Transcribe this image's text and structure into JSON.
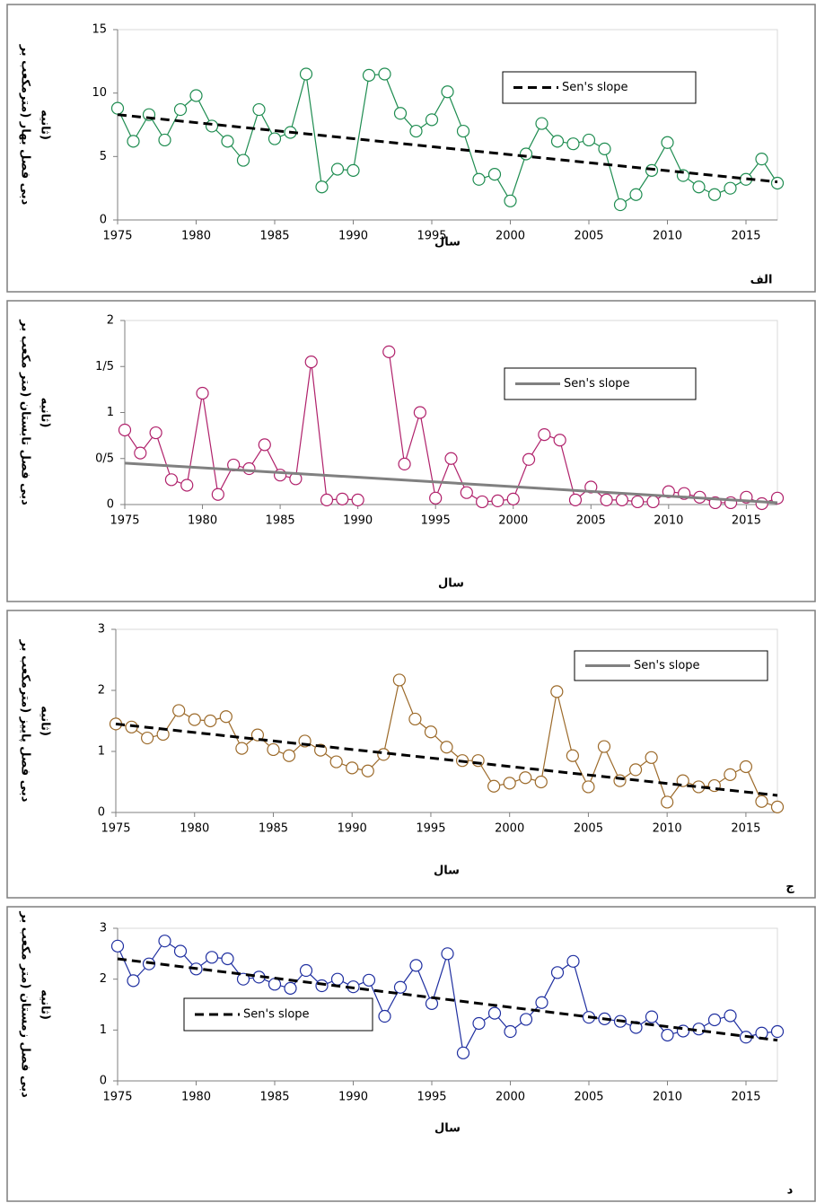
{
  "chart_data": [
    {
      "type": "line",
      "ylabel": [
        "دبی فصل بهار (مترمکعب بر",
        "ثانیه)"
      ],
      "xlabel": "سال",
      "panel_label": "الف",
      "x": [
        1975,
        1976,
        1977,
        1978,
        1979,
        1980,
        1981,
        1982,
        1983,
        1984,
        1985,
        1986,
        1987,
        1988,
        1989,
        1990,
        1991,
        1992,
        1993,
        1994,
        1995,
        1996,
        1997,
        1998,
        1999,
        2000,
        2001,
        2002,
        2003,
        2004,
        2005,
        2006,
        2007,
        2008,
        2009,
        2010,
        2011,
        2012,
        2013,
        2014,
        2015,
        2016,
        2017
      ],
      "xlim": [
        1975,
        2017
      ],
      "xticks": [
        1975,
        1980,
        1985,
        1990,
        1995,
        2000,
        2005,
        2010,
        2015
      ],
      "ylim": [
        0,
        15
      ],
      "yticks": [
        0,
        5,
        10,
        15
      ],
      "legend": "upper right",
      "series": [
        {
          "color": "#1e8c50",
          "values": [
            8.8,
            6.2,
            8.3,
            6.3,
            8.7,
            9.8,
            7.4,
            6.2,
            4.7,
            8.7,
            6.4,
            6.9,
            11.5,
            2.6,
            4.0,
            3.9,
            11.4,
            11.5,
            8.4,
            7.0,
            7.9,
            10.1,
            7.0,
            3.2,
            3.6,
            1.5,
            5.2,
            7.6,
            6.2,
            6.0,
            6.3,
            5.6,
            1.2,
            2.0,
            3.9,
            6.1,
            3.5,
            2.6,
            2.0,
            2.5,
            3.2,
            4.8,
            2.9
          ]
        },
        {
          "name": "Sen's slope",
          "color": "#000000",
          "dashed": true,
          "x": [
            1975,
            2017
          ],
          "values": [
            8.3,
            3.0
          ]
        }
      ]
    },
    {
      "type": "line",
      "ylabel": [
        "دبی فصل تابستان (متر مکعب بر",
        "ثانیه)"
      ],
      "xlabel": "سال",
      "x": [
        1975,
        1976,
        1977,
        1978,
        1979,
        1980,
        1981,
        1982,
        1983,
        1984,
        1985,
        1986,
        1987,
        1988,
        1989,
        1990,
        1991,
        1992,
        1993,
        1994,
        1995,
        1996,
        1997,
        1998,
        1999,
        2000,
        2001,
        2002,
        2003,
        2004,
        2005,
        2006,
        2007,
        2008,
        2009,
        2010,
        2011,
        2012,
        2013,
        2014,
        2015,
        2016,
        2017
      ],
      "xlim": [
        1975,
        2017
      ],
      "xticks": [
        1975,
        1980,
        1985,
        1990,
        1995,
        2000,
        2005,
        2010,
        2015
      ],
      "ylim": [
        0,
        2
      ],
      "yticks": [
        0,
        {
          "value": 0.5,
          "label": "0/5"
        },
        1,
        {
          "value": 1.5,
          "label": "1/5"
        },
        2
      ],
      "legend": "upper right",
      "series": [
        {
          "color": "#b0216b",
          "values": [
            0.81,
            0.56,
            0.78,
            0.27,
            0.21,
            1.21,
            0.11,
            0.43,
            0.39,
            0.65,
            0.32,
            0.28,
            1.55,
            0.05,
            0.06,
            0.05,
            null,
            1.66,
            0.44,
            1.0,
            0.07,
            0.5,
            0.13,
            0.03,
            0.04,
            0.06,
            0.49,
            0.76,
            0.7,
            0.05,
            0.19,
            0.05,
            0.05,
            0.03,
            0.03,
            0.14,
            0.12,
            0.08,
            0.02,
            0.02,
            0.08,
            0.01,
            0.07
          ]
        },
        {
          "name": "Sen's slope",
          "color": "#808080",
          "dashed": false,
          "x": [
            1975,
            2017
          ],
          "values": [
            0.45,
            0.02
          ]
        }
      ]
    },
    {
      "type": "line",
      "ylabel": [
        "دبی فصل پاییز (مترمکعب بر",
        "ثانیه)"
      ],
      "xlabel": "سال",
      "panel_label": "ج",
      "x": [
        1975,
        1976,
        1977,
        1978,
        1979,
        1980,
        1981,
        1982,
        1983,
        1984,
        1985,
        1986,
        1987,
        1988,
        1989,
        1990,
        1991,
        1992,
        1993,
        1994,
        1995,
        1996,
        1997,
        1998,
        1999,
        2000,
        2001,
        2002,
        2003,
        2004,
        2005,
        2006,
        2007,
        2008,
        2009,
        2010,
        2011,
        2012,
        2013,
        2014,
        2015,
        2016,
        2017
      ],
      "xlim": [
        1975,
        2017
      ],
      "xticks": [
        1975,
        1980,
        1985,
        1990,
        1995,
        2000,
        2005,
        2010,
        2015
      ],
      "ylim": [
        0,
        3
      ],
      "yticks": [
        0,
        1,
        2,
        3
      ],
      "legend": "upper right",
      "series": [
        {
          "color": "#9c6a2a",
          "values": [
            1.45,
            1.4,
            1.22,
            1.28,
            1.67,
            1.52,
            1.5,
            1.57,
            1.05,
            1.27,
            1.03,
            0.93,
            1.17,
            1.02,
            0.83,
            0.73,
            0.68,
            0.95,
            2.17,
            1.53,
            1.32,
            1.07,
            0.85,
            0.85,
            0.43,
            0.48,
            0.57,
            0.5,
            1.98,
            0.93,
            0.42,
            1.08,
            0.52,
            0.7,
            0.9,
            0.17,
            0.52,
            0.42,
            0.44,
            0.62,
            0.75,
            0.18,
            0.09
          ]
        },
        {
          "name": "Sen's slope",
          "color": "#000000",
          "dashed": true,
          "legend_color": "#808080",
          "legend_dashed": false,
          "x": [
            1975,
            2017
          ],
          "values": [
            1.45,
            0.28
          ]
        }
      ]
    },
    {
      "type": "line",
      "ylabel": [
        "دبی فصل زمستان (متر مکعب بر",
        "ثانیه)"
      ],
      "xlabel": "سال",
      "panel_label": "د",
      "x": [
        1975,
        1976,
        1977,
        1978,
        1979,
        1980,
        1981,
        1982,
        1983,
        1984,
        1985,
        1986,
        1987,
        1988,
        1989,
        1990,
        1991,
        1992,
        1993,
        1994,
        1995,
        1996,
        1997,
        1998,
        1999,
        2000,
        2001,
        2002,
        2003,
        2004,
        2005,
        2006,
        2007,
        2008,
        2009,
        2010,
        2011,
        2012,
        2013,
        2014,
        2015,
        2016,
        2017
      ],
      "xlim": [
        1975,
        2017
      ],
      "xticks": [
        1975,
        1980,
        1985,
        1990,
        1995,
        2000,
        2005,
        2010,
        2015
      ],
      "ylim": [
        0,
        3
      ],
      "yticks": [
        0,
        1,
        2,
        3
      ],
      "legend": "lower left",
      "series": [
        {
          "color": "#1f2fa0",
          "values": [
            2.65,
            1.97,
            2.3,
            2.75,
            2.55,
            2.2,
            2.43,
            2.4,
            2.0,
            2.04,
            1.9,
            1.82,
            2.17,
            1.87,
            2.0,
            1.85,
            1.98,
            1.27,
            1.84,
            2.27,
            1.52,
            2.5,
            0.55,
            1.13,
            1.33,
            0.97,
            1.21,
            1.54,
            2.13,
            2.35,
            1.25,
            1.22,
            1.17,
            1.05,
            1.26,
            0.9,
            0.98,
            1.02,
            1.2,
            1.28,
            0.86,
            0.94,
            0.97
          ]
        },
        {
          "name": "Sen's slope",
          "color": "#000000",
          "dashed": true,
          "x": [
            1975,
            2017
          ],
          "values": [
            2.4,
            0.8
          ]
        }
      ]
    }
  ]
}
